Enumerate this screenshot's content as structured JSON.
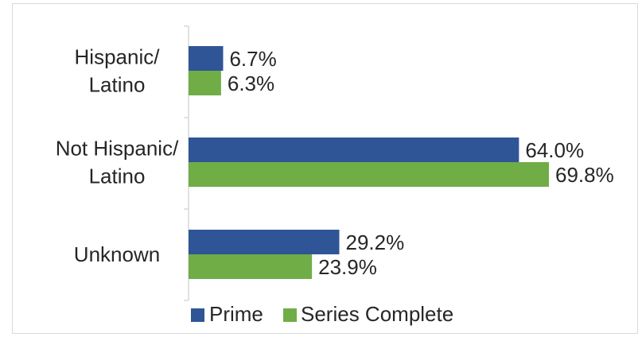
{
  "chart_data": {
    "type": "bar",
    "orientation": "horizontal",
    "categories": [
      [
        "Hispanic/",
        "Latino"
      ],
      [
        "Not Hispanic/",
        "Latino"
      ],
      [
        "Unknown"
      ]
    ],
    "series": [
      {
        "name": "Prime",
        "color": "#2f5597",
        "values": [
          6.7,
          64.0,
          29.2
        ],
        "labels": [
          "6.7%",
          "64.0%",
          "29.2%"
        ]
      },
      {
        "name": "Series Complete",
        "color": "#70ad47",
        "values": [
          6.3,
          69.8,
          23.9
        ],
        "labels": [
          "6.3%",
          "69.8%",
          "23.9%"
        ]
      }
    ],
    "xlim": [
      0,
      69.8
    ],
    "grid": false,
    "legend": "bottom",
    "title": "",
    "xlabel": "",
    "ylabel": ""
  }
}
